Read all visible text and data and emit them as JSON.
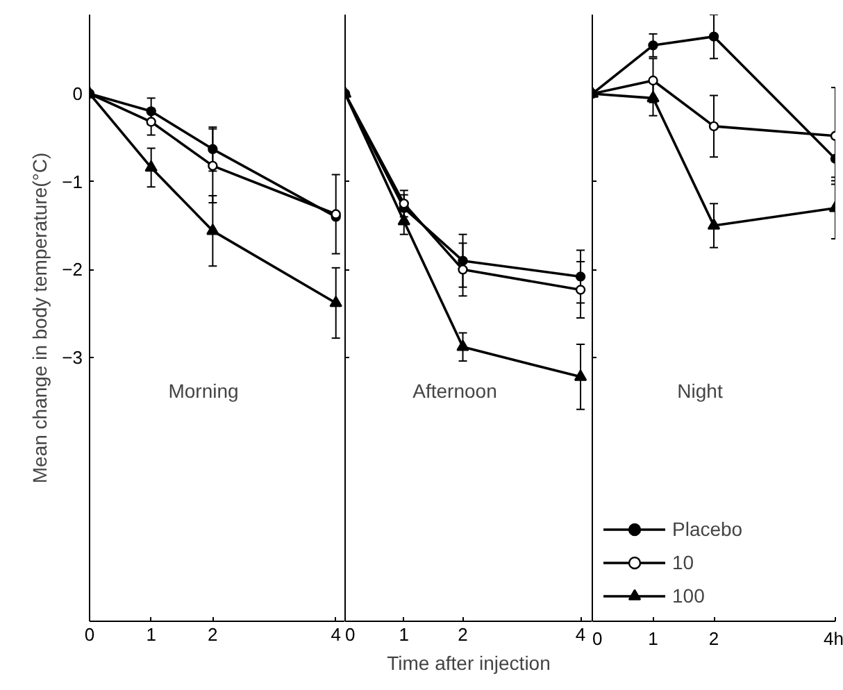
{
  "chart_data": [
    {
      "type": "line",
      "annotations": [
        "Morning"
      ],
      "ylabel": "Mean change in body temperature(°C)",
      "x": [
        0,
        1,
        2,
        4
      ],
      "xlim": [
        0,
        4.15
      ],
      "xticks": [
        0,
        1,
        2,
        4
      ],
      "ylim": [
        -6,
        0.9
      ],
      "yticks": [
        0,
        -1,
        -2,
        -3
      ],
      "grid": false,
      "legend": false,
      "series": [
        {
          "color": "#000000",
          "marker": "circle",
          "values": [
            0,
            -0.2,
            -0.63,
            -1.4
          ],
          "errors": [
            null,
            0.15,
            0.25,
            null
          ]
        },
        {
          "color": "#000000",
          "marker": "circle_open",
          "values": [
            0,
            -0.32,
            -0.82,
            -1.37
          ],
          "errors": [
            null,
            0.15,
            0.42,
            0.45
          ]
        },
        {
          "color": "#000000",
          "marker": "triangle",
          "values": [
            0,
            -0.84,
            -1.56,
            -2.38
          ],
          "errors": [
            null,
            0.22,
            0.4,
            0.4
          ]
        }
      ]
    },
    {
      "type": "line",
      "annotations": [
        "Afternoon"
      ],
      "xlabel": "Time after injection",
      "x": [
        0,
        1,
        2,
        4
      ],
      "xlim": [
        0,
        4.2
      ],
      "xticks": [
        0,
        1,
        2,
        4
      ],
      "ylim": [
        -6,
        0.9
      ],
      "yticks": [
        0,
        -1,
        -2,
        -3
      ],
      "tick_labels": "x",
      "grid": false,
      "legend": false,
      "series": [
        {
          "color": "#000000",
          "marker": "circle",
          "values": [
            0,
            -1.3,
            -1.9,
            -2.08
          ],
          "errors": [
            null,
            0.15,
            0.3,
            0.3
          ]
        },
        {
          "color": "#000000",
          "marker": "circle_open",
          "values": [
            0,
            -1.25,
            -2.0,
            -2.23
          ],
          "errors": [
            null,
            0.15,
            0.3,
            0.32
          ]
        },
        {
          "color": "#000000",
          "marker": "triangle",
          "values": [
            0,
            -1.45,
            -2.88,
            -3.22
          ],
          "errors": [
            null,
            0.15,
            0.16,
            0.37
          ]
        }
      ]
    },
    {
      "type": "line",
      "annotations": [
        "Night"
      ],
      "x": [
        0,
        1,
        2,
        4
      ],
      "xlim": [
        0,
        4.0
      ],
      "xticks": [
        0,
        1,
        2,
        {
          "value": 4,
          "label": "4h"
        }
      ],
      "ylim": [
        -6,
        0.9
      ],
      "yticks": [
        0,
        -1,
        -2,
        -3
      ],
      "tick_labels": "x",
      "grid": false,
      "legend": "bottom left",
      "series": [
        {
          "name": "Placebo",
          "color": "#000000",
          "marker": "circle",
          "values": [
            0,
            0.55,
            0.65,
            -0.74
          ],
          "errors": [
            null,
            0.13,
            0.25,
            0.25
          ]
        },
        {
          "name": "10",
          "color": "#000000",
          "marker": "circle_open",
          "values": [
            0,
            0.15,
            -0.37,
            -0.48
          ],
          "errors": [
            null,
            0.25,
            0.35,
            0.55
          ]
        },
        {
          "name": "100",
          "color": "#000000",
          "marker": "triangle",
          "values": [
            0,
            -0.05,
            -1.5,
            -1.3
          ],
          "errors": [
            null,
            0.2,
            0.25,
            0.35
          ]
        }
      ]
    }
  ]
}
